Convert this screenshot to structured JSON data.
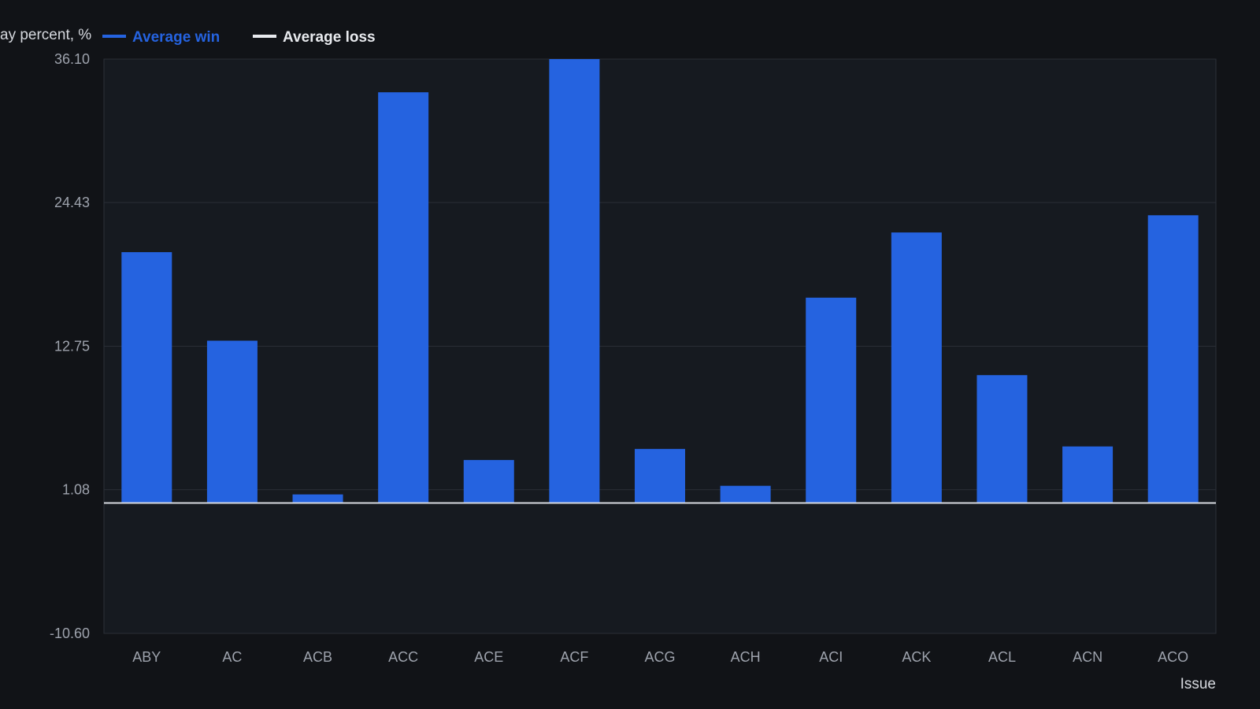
{
  "chart_data": {
    "type": "bar",
    "ylabel": "ay percent, %",
    "xlabel": "Issue",
    "categories": [
      "ABY",
      "AC",
      "ACB",
      "ACC",
      "ACE",
      "ACF",
      "ACG",
      "ACH",
      "ACI",
      "ACK",
      "ACL",
      "ACN",
      "ACO"
    ],
    "series": [
      {
        "name": "Average win",
        "color": "#2563e0",
        "values": [
          20.4,
          13.2,
          0.7,
          33.4,
          3.5,
          36.1,
          4.4,
          1.4,
          16.7,
          22.0,
          10.4,
          4.6,
          23.4
        ]
      },
      {
        "name": "Average loss",
        "color": "#e8eaee",
        "values": [
          0,
          0,
          0,
          0,
          0,
          0,
          0,
          0,
          0,
          0,
          0,
          0,
          0
        ]
      }
    ],
    "yticks": [
      "36.10",
      "24.43",
      "12.75",
      "1.08",
      "-10.60"
    ],
    "ylim": [
      -10.6,
      36.1
    ],
    "grid": true,
    "legend": "top-left"
  }
}
